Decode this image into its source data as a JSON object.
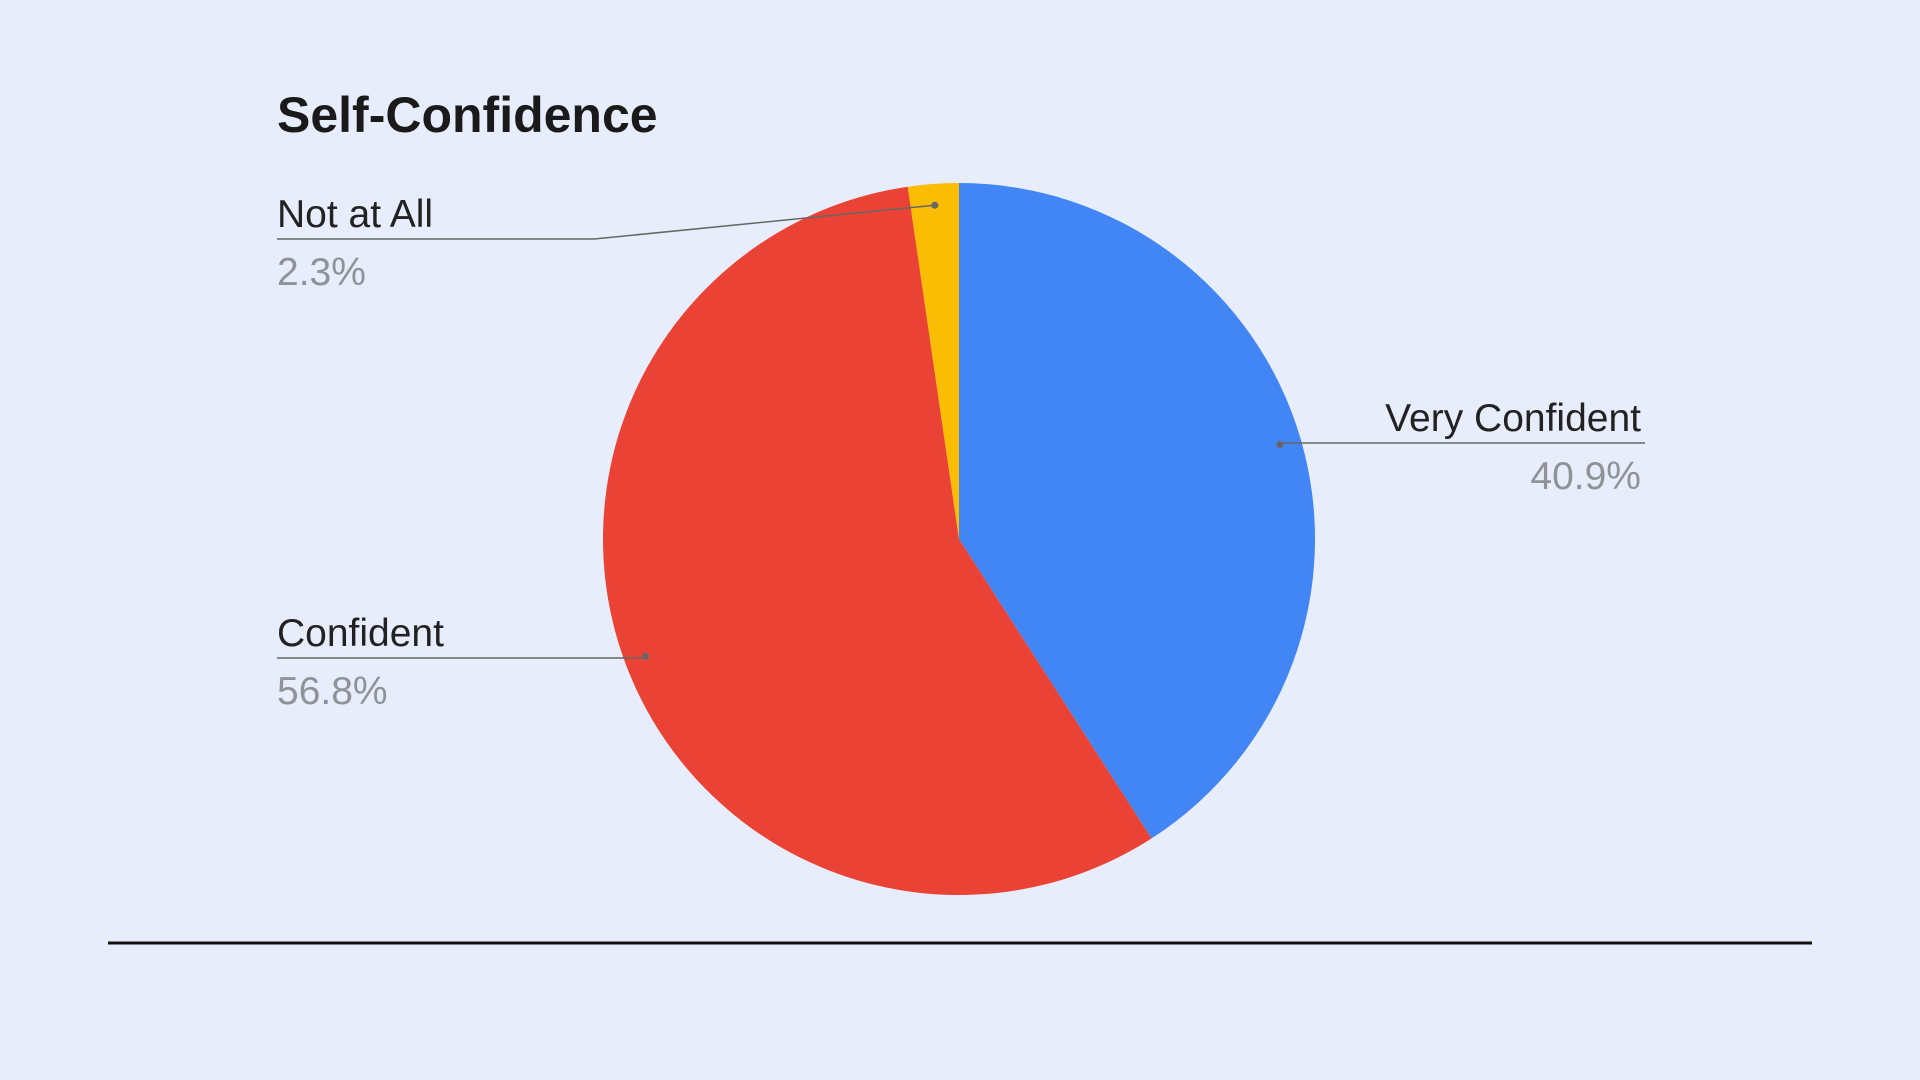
{
  "chart_data": {
    "type": "pie",
    "title": "Self-Confidence",
    "categories": [
      "Very Confident",
      "Confident",
      "Not at All"
    ],
    "values": [
      40.9,
      56.8,
      2.3
    ],
    "value_labels": [
      "40.9%",
      "56.8%",
      "2.3%"
    ],
    "colors": [
      "#4285f4",
      "#ea4335",
      "#fbbc04"
    ]
  }
}
